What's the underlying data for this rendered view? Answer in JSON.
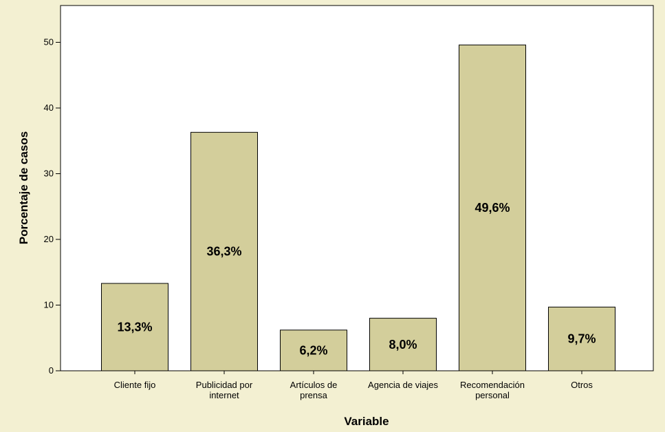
{
  "chart_data": {
    "type": "bar",
    "categories": [
      [
        "Cliente fijo"
      ],
      [
        "Publicidad por",
        "internet"
      ],
      [
        "Artículos de",
        "prensa"
      ],
      [
        "Agencia de viajes"
      ],
      [
        "Recomendación",
        "personal"
      ],
      [
        "Otros"
      ]
    ],
    "values": [
      13.3,
      36.3,
      6.2,
      8.0,
      49.6,
      9.7
    ],
    "data_labels": [
      "13,3%",
      "36,3%",
      "6,2%",
      "8,0%",
      "49,6%",
      "9,7%"
    ],
    "xlabel": "Variable",
    "ylabel": "Porcentaje de casos",
    "ylim": [
      0,
      55
    ],
    "yticks": [
      0,
      10,
      20,
      30,
      40,
      50
    ],
    "grid": false,
    "colors": {
      "bar_fill": "#d3ce9b",
      "bar_stroke": "#000000",
      "plot_background": "#ffffff",
      "page_background": "#f3f0d2"
    }
  }
}
